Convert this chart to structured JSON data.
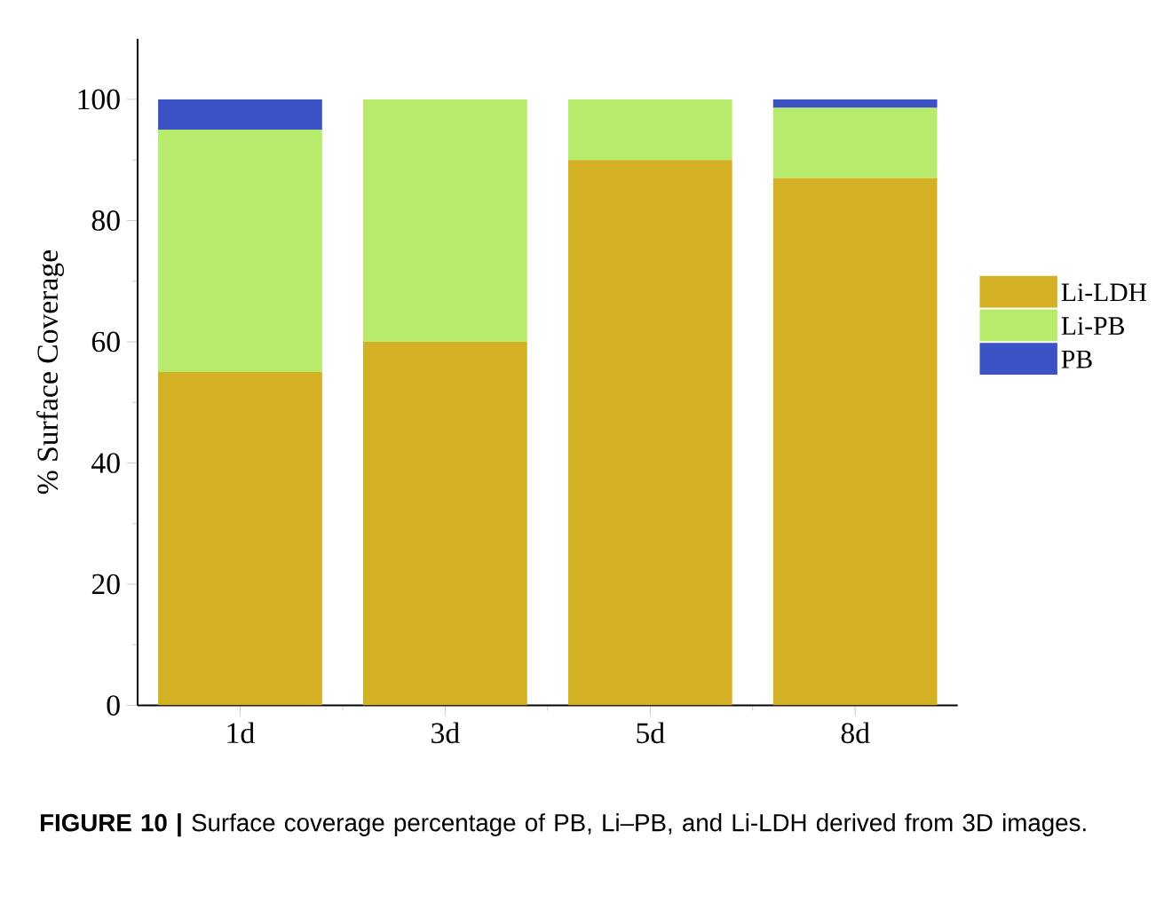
{
  "chart_data": {
    "type": "bar",
    "stacked": true,
    "categories": [
      "1d",
      "3d",
      "5d",
      "8d"
    ],
    "ylabel": "% Surface Coverage",
    "series": [
      {
        "name": "Li-LDH",
        "color": "#d3b024",
        "values": [
          55,
          60,
          90,
          87
        ]
      },
      {
        "name": "Li-PB",
        "color": "#b8eb6c",
        "values": [
          40,
          40,
          10,
          11.6
        ]
      },
      {
        "name": "PB",
        "color": "#3a52c4",
        "values": [
          5,
          0,
          0,
          1.4
        ]
      }
    ],
    "ylim": [
      0,
      110
    ],
    "yticks": [
      0,
      20,
      40,
      60,
      80,
      100
    ],
    "legend": "right",
    "annotations": [
      "**FIGURE 10 |** Surface coverage percentage of PB, Li–PB, and Li-LDH derived from 3D images."
    ]
  }
}
